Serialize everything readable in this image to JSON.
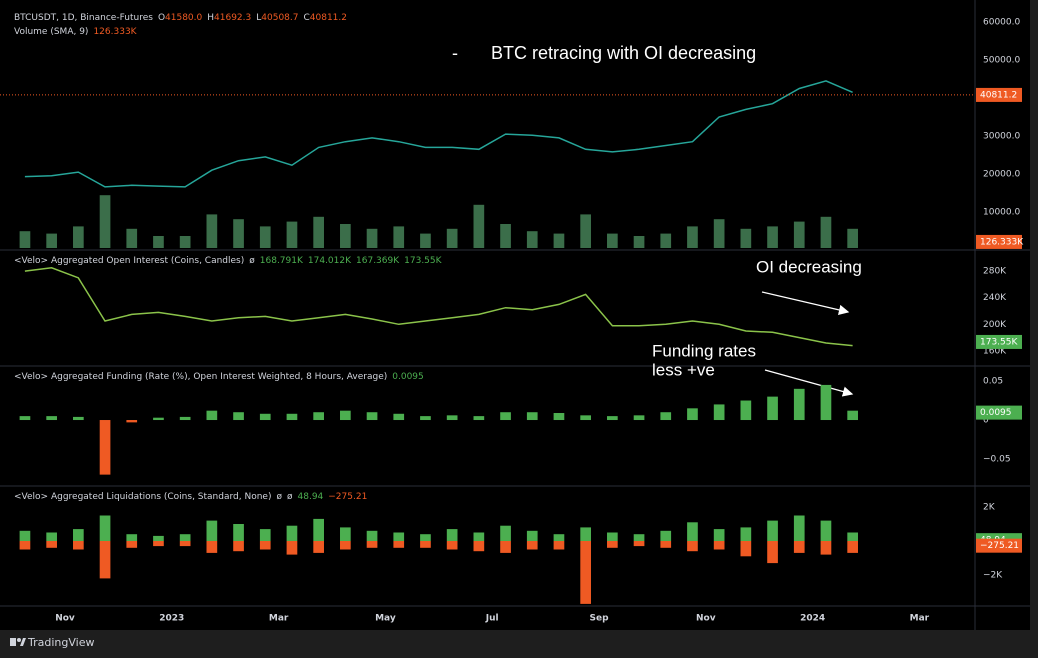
{
  "header": {
    "symbol": "BTCUSDT, 1D, Binance-Futures",
    "ohlc": [
      {
        "key": "O",
        "value": 41580,
        "label": "41580.0"
      },
      {
        "key": "H",
        "value": 41692.3,
        "label": "41692.3"
      },
      {
        "key": "L",
        "value": 40508.7,
        "label": "40508.7"
      },
      {
        "key": "C",
        "value": 40811.2,
        "label": "40811.2"
      }
    ],
    "volume_legend": "Volume (SMA, 9)",
    "volume_sma": {
      "value": 126333,
      "label": "126.333K"
    }
  },
  "annotations": [
    "-",
    "BTC retracing with OI decreasing",
    "OI decreasing",
    "Funding rates",
    "less +ve"
  ],
  "branding": "TradingView",
  "time_axis": {
    "categories": [
      null,
      null,
      "Nov",
      null,
      null,
      null,
      "2023",
      null,
      null,
      null,
      "Mar",
      null,
      null,
      null,
      "May",
      null,
      null,
      null,
      "Jul",
      null,
      null,
      null,
      "Sep",
      null,
      null,
      null,
      "Nov",
      null,
      null,
      null,
      "2024",
      null,
      null,
      null,
      "Mar",
      null
    ]
  },
  "chart_data": [
    {
      "type": "line",
      "grid": false,
      "series": [
        {
          "color": "#26a69a",
          "values": [
            19300,
            19500,
            20500,
            16600,
            17000,
            16800,
            16600,
            21000,
            23500,
            24500,
            22300,
            27000,
            28500,
            29500,
            28500,
            27000,
            27000,
            26500,
            30500,
            30200,
            29500,
            26500,
            25800,
            26500,
            27500,
            28500,
            35000,
            37000,
            38500,
            42500,
            44500,
            41500,
            null,
            null,
            null,
            null
          ]
        },
        {
          "type": "bar",
          "axis": "y2",
          "color": "#3b6e4a",
          "values": [
            350000,
            300000,
            450000,
            1100000,
            400000,
            250000,
            250000,
            700000,
            600000,
            450000,
            550000,
            650000,
            500000,
            400000,
            450000,
            300000,
            400000,
            900000,
            500000,
            350000,
            300000,
            700000,
            300000,
            250000,
            300000,
            450000,
            600000,
            400000,
            450000,
            550000,
            650000,
            400000,
            null,
            null,
            null,
            null
          ]
        }
      ],
      "ylim": [
        500,
        63700
      ],
      "y2lim": [
        0,
        5000000
      ],
      "yticks": [
        {
          "value": 10000,
          "label": "10000.0"
        },
        {
          "value": 20000,
          "label": "20000.0"
        },
        {
          "value": 30000,
          "label": "30000.0"
        },
        {
          "value": 50000,
          "label": "50000.0"
        },
        {
          "value": 60000,
          "label": "60000.0"
        }
      ],
      "last_values": [
        {
          "value": 40811.2,
          "color": "#ef5a23",
          "line": true
        },
        {
          "value": 126333,
          "label": "126.333K",
          "axis": "y2",
          "color": "#ef5a23"
        }
      ]
    },
    {
      "type": "line",
      "grid": false,
      "legend": "<Velo> Aggregated Open Interest (Coins, Candles)",
      "legend_symbols": [
        "ø"
      ],
      "legend_values": [
        {
          "value": 168791,
          "label": "168.791K"
        },
        {
          "value": 174012,
          "label": "174.012K"
        },
        {
          "value": 167369,
          "label": "167.369K"
        },
        {
          "value": 173550,
          "label": "173.55K"
        }
      ],
      "legend_color": "#4caf50",
      "series": [
        {
          "color": "#8bc34a",
          "values": [
            280000,
            285000,
            270000,
            205000,
            215000,
            218000,
            212000,
            205000,
            210000,
            212000,
            205000,
            210000,
            215000,
            208000,
            200000,
            205000,
            210000,
            215000,
            225000,
            222000,
            230000,
            245000,
            198000,
            198000,
            200000,
            205000,
            200000,
            190000,
            188000,
            180000,
            172000,
            168000,
            null,
            null,
            null,
            null
          ]
        }
      ],
      "ylim": [
        138900,
        308700
      ],
      "yticks": [
        {
          "value": 160000,
          "label": "160K"
        },
        {
          "value": 200000,
          "label": "200K"
        },
        {
          "value": 240000,
          "label": "240K"
        },
        {
          "value": 280000,
          "label": "280K"
        }
      ],
      "last_values": [
        {
          "value": 173550,
          "label": "173.55K",
          "color": "#4caf50"
        }
      ]
    },
    {
      "type": "bar",
      "grid": false,
      "legend": "<Velo> Aggregated Funding (Rate (%), Open Interest Weighted, 8 Hours, Average)",
      "legend_values": [
        0.0095
      ],
      "legend_color": "#4caf50",
      "series": [
        {
          "color": "#4caf50",
          "negative_color": "#ef5a23",
          "values": [
            0.005,
            0.005,
            0.004,
            -0.07,
            -0.003,
            0.003,
            0.004,
            0.012,
            0.01,
            0.008,
            0.008,
            0.01,
            0.012,
            0.01,
            0.008,
            0.005,
            0.006,
            0.005,
            0.01,
            0.01,
            0.009,
            0.006,
            0.005,
            0.006,
            0.01,
            0.015,
            0.02,
            0.025,
            0.03,
            0.04,
            0.045,
            0.012,
            null,
            null,
            null,
            null
          ]
        }
      ],
      "ylim": [
        -0.0833,
        0.0667
      ],
      "yticks": [
        {
          "value": -0.05,
          "label": "−0.05"
        },
        0,
        0.05
      ],
      "last_values": [
        {
          "value": 0.0095,
          "color": "#4caf50"
        }
      ]
    },
    {
      "type": "bar",
      "grid": false,
      "legend": "<Velo> Aggregated Liquidations (Coins, Standard, None)",
      "legend_symbols": [
        "ø",
        "ø"
      ],
      "legend_values": [
        48.94,
        {
          "value": -275.21,
          "label": "−275.21"
        }
      ],
      "legend_colors": [
        "#4caf50",
        "#ef5a23"
      ],
      "series": [
        {
          "color": "#4caf50",
          "values": [
            600,
            500,
            700,
            1500,
            400,
            300,
            400,
            1200,
            1000,
            700,
            900,
            1300,
            800,
            600,
            500,
            400,
            700,
            500,
            900,
            600,
            400,
            800,
            500,
            400,
            600,
            1100,
            700,
            800,
            1200,
            1500,
            1200,
            500,
            null,
            null,
            null,
            null
          ]
        },
        {
          "color": "#ef5a23",
          "values": [
            -500,
            -400,
            -500,
            -2200,
            -400,
            -300,
            -300,
            -700,
            -600,
            -500,
            -800,
            -700,
            -500,
            -400,
            -400,
            -400,
            -500,
            -600,
            -700,
            -500,
            -500,
            -3700,
            -400,
            -300,
            -400,
            -600,
            -500,
            -900,
            -1300,
            -700,
            -800,
            -700,
            null,
            null,
            null,
            null
          ]
        }
      ],
      "ylim": [
        -3765,
        3118
      ],
      "yticks": [
        {
          "value": -2000,
          "label": "−2K"
        },
        {
          "value": 2000,
          "label": "2K"
        }
      ],
      "last_values": [
        {
          "value": 48.94,
          "color": "#4caf50"
        },
        {
          "value": -275.21,
          "label": "−275.21",
          "color": "#ef5a23"
        }
      ]
    }
  ]
}
